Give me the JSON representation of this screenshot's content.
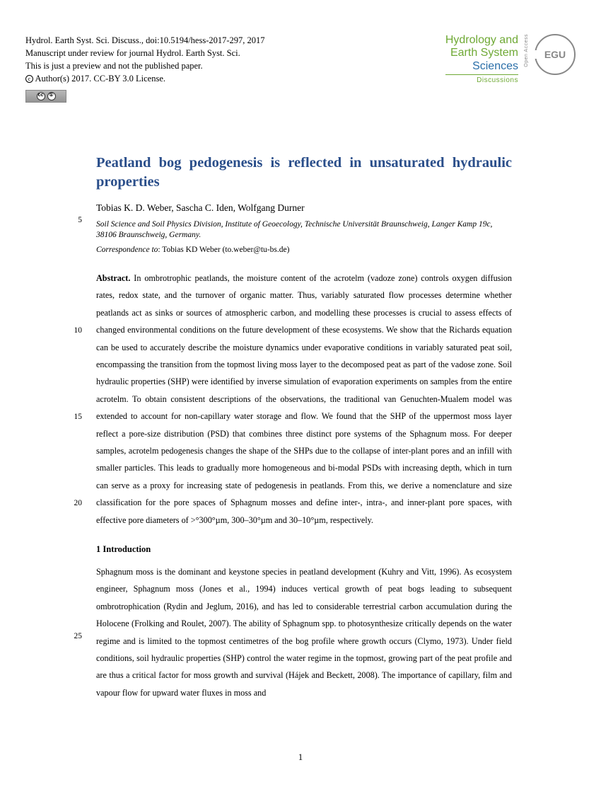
{
  "header": {
    "citation": "Hydrol. Earth Syst. Sci. Discuss., doi:10.5194/hess-2017-297, 2017",
    "review": "Manuscript under review for journal Hydrol. Earth Syst. Sci.",
    "preview": "This is just a preview and not the published paper.",
    "copyright": "Author(s) 2017. CC-BY 3.0 License.",
    "journal": {
      "line1": "Hydrology and",
      "line2": "Earth System",
      "line3": "Sciences",
      "line4": "Discussions",
      "open_access": "Open Access",
      "org": "EGU"
    }
  },
  "title": "Peatland bog pedogenesis is reflected in unsaturated hydraulic properties",
  "authors": "Tobias K. D. Weber, Sascha C. Iden, Wolfgang Durner",
  "affiliation": "Soil Science and Soil Physics Division, Institute of Geoecology, Technische Universität Braunschweig, Langer Kamp 19c, 38106 Braunschweig, Germany.",
  "correspondence_label": "Correspondence to",
  "correspondence_value": ": Tobias KD Weber (to.weber@tu-bs.de)",
  "abstract_label": "Abstract.",
  "abstract_text": " In ombrotrophic peatlands, the moisture content of the acrotelm (vadoze zone) controls oxygen diffusion rates, redox state, and the turnover of organic matter. Thus, variably saturated flow processes determine whether peatlands act as sinks or sources of atmospheric carbon, and modelling these processes is crucial to assess effects of changed environmental conditions on the future development of these ecosystems. We show that the Richards equation can be used to accurately describe the moisture dynamics under evaporative conditions in variably saturated peat soil, encompassing the transition from the topmost living moss layer to the decomposed peat as part of the vadose zone. Soil hydraulic properties (SHP) were identified by inverse simulation of evaporation experiments on samples from the entire acrotelm. To obtain consistent descriptions of the observations, the traditional van Genuchten-Mualem model was extended to account for non-capillary water storage and flow. We found that the SHP of the uppermost moss layer reflect a pore-size distribution (PSD) that combines three distinct pore systems of the Sphagnum moss. For deeper samples, acrotelm pedogenesis changes the shape of the SHPs due to the collapse of inter-plant pores and an infill with smaller particles. This leads to gradually more homogeneous and bi-modal PSDs with increasing depth, which in turn can serve as a proxy for increasing state of pedogenesis in peatlands. From this, we derive a nomenclature and size classification for the pore spaces of Sphagnum mosses and define inter-, intra-, and inner-plant pore spaces, with effective pore diameters of >°300°µm, 300–30°µm and 30–10°µm, respectively.",
  "section1_head": "1 Introduction",
  "intro_text": "Sphagnum moss is the dominant and keystone species in peatland development (Kuhry and Vitt, 1996). As ecosystem engineer, Sphagnum moss (Jones et al., 1994) induces vertical growth of peat bogs leading to subsequent ombrotrophication (Rydin and Jeglum, 2016), and has led to considerable terrestrial carbon accumulation during the Holocene (Frolking and Roulet, 2007). The ability of Sphagnum spp. to photosynthesize critically depends on the water regime and is limited to the topmost centimetres of the bog profile where growth occurs (Clymo, 1973). Under field conditions, soil hydraulic properties (SHP) control the water regime in the topmost, growing part of the peat profile and are thus a critical factor for moss growth and survival (Hájek and Beckett, 2008). The importance of capillary, film and vapour flow for upward water fluxes in moss and",
  "line_numbers": {
    "n5": "5",
    "n10": "10",
    "n15": "15",
    "n20": "20",
    "n25": "25"
  },
  "page_number": "1",
  "colors": {
    "title_blue": "#2a4e8a",
    "journal_green": "#6fa935",
    "journal_blue": "#2a6ea8",
    "egu_grey": "#888888"
  }
}
